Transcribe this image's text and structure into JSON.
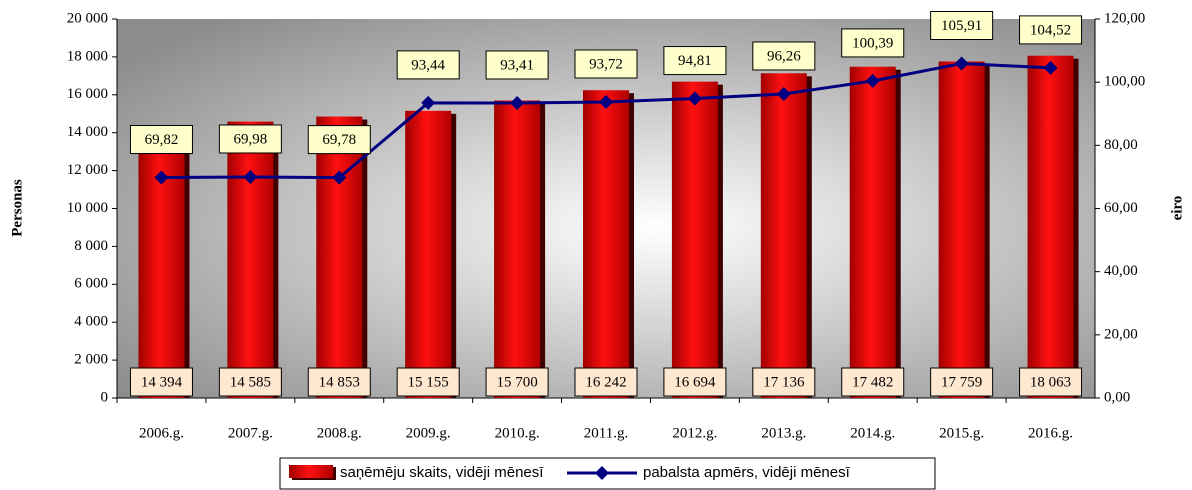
{
  "chart_data": {
    "type": "bar",
    "categories": [
      "2006.g.",
      "2007.g.",
      "2008.g.",
      "2009.g.",
      "2010.g.",
      "2011.g.",
      "2012.g.",
      "2013.g.",
      "2014.g.",
      "2015.g.",
      "2016.g."
    ],
    "ylabel": "Personas",
    "y2label": "eiro",
    "series": [
      {
        "name": "saņēmēju skaits, vidēji mēnesī",
        "type": "bar",
        "color": "#e00000",
        "values": [
          14394,
          14585,
          14853,
          15155,
          15700,
          16242,
          16694,
          17136,
          17482,
          17759,
          18063
        ],
        "value_labels": [
          "14 394",
          "14 585",
          "14 853",
          "15 155",
          "15 700",
          "16 242",
          "16 694",
          "17 136",
          "17 482",
          "17 759",
          "18 063"
        ]
      },
      {
        "name": "pabalsta apmērs, vidēji mēnesī",
        "type": "line",
        "axis": "y2",
        "color": "#000080",
        "values": [
          69.82,
          69.98,
          69.78,
          93.44,
          93.41,
          93.72,
          94.81,
          96.26,
          100.39,
          105.91,
          104.52
        ],
        "value_labels": [
          "69,82",
          "69,98",
          "69,78",
          "93,44",
          "93,41",
          "93,72",
          "94,81",
          "96,26",
          "100,39",
          "105,91",
          "104,52"
        ]
      }
    ],
    "ylim": [
      0,
      20000
    ],
    "yticks": [
      0,
      {
        "value": 2000,
        "label": "2 000"
      },
      {
        "value": 4000,
        "label": "4 000"
      },
      {
        "value": 6000,
        "label": "6 000"
      },
      {
        "value": 8000,
        "label": "8 000"
      },
      {
        "value": 10000,
        "label": "10 000"
      },
      {
        "value": 12000,
        "label": "12 000"
      },
      {
        "value": 14000,
        "label": "14 000"
      },
      {
        "value": 16000,
        "label": "16 000"
      },
      {
        "value": 18000,
        "label": "18 000"
      },
      {
        "value": 20000,
        "label": "20 000"
      }
    ],
    "y2lim": [
      0,
      120
    ],
    "y2ticks": [
      {
        "value": 0,
        "label": "0,00"
      },
      {
        "value": 20,
        "label": "20,00"
      },
      {
        "value": 40,
        "label": "40,00"
      },
      {
        "value": 60,
        "label": "60,00"
      },
      {
        "value": 80,
        "label": "80,00"
      },
      {
        "value": 100,
        "label": "100,00"
      },
      {
        "value": 120,
        "label": "120,00"
      }
    ],
    "legend": "bottom"
  }
}
